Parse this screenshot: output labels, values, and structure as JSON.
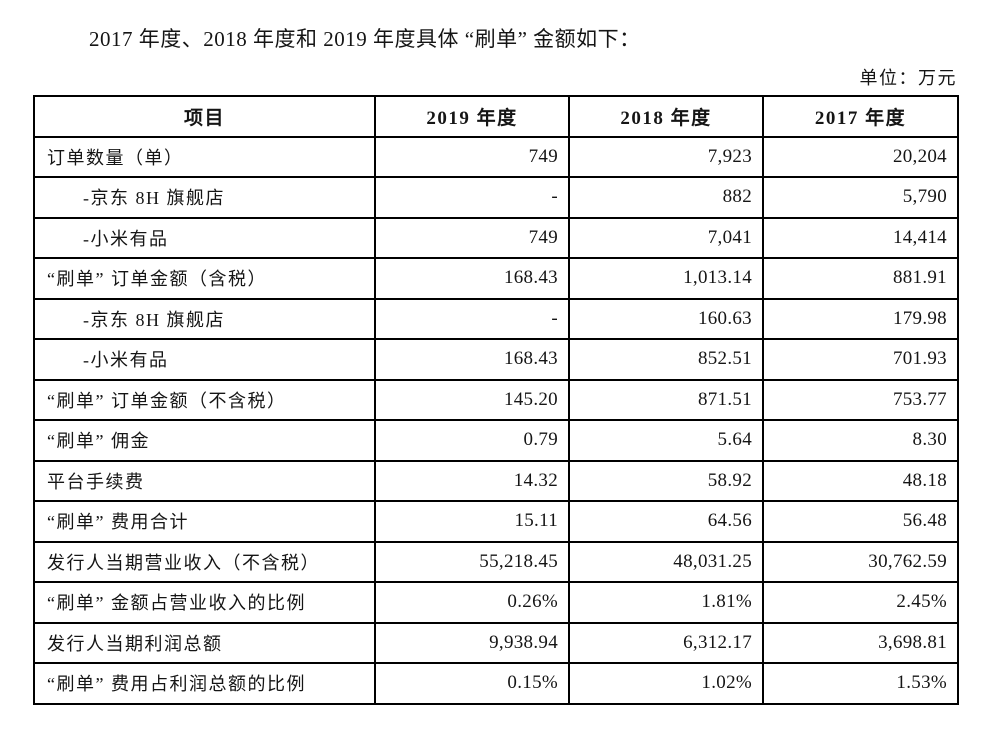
{
  "page": {
    "title": "2017 年度、2018 年度和 2019 年度具体 “刷单” 金额如下：",
    "unit_label": "单位：万元"
  },
  "table": {
    "columns": [
      "项目",
      "2019 年度",
      "2018 年度",
      "2017 年度"
    ],
    "rows": [
      {
        "label": "订单数量（单）",
        "indent": false,
        "values": [
          "749",
          "7,923",
          "20,204"
        ]
      },
      {
        "label": "-京东 8H 旗舰店",
        "indent": true,
        "values": [
          "-",
          "882",
          "5,790"
        ]
      },
      {
        "label": "-小米有品",
        "indent": true,
        "values": [
          "749",
          "7,041",
          "14,414"
        ]
      },
      {
        "label": "“刷单” 订单金额（含税）",
        "indent": false,
        "values": [
          "168.43",
          "1,013.14",
          "881.91"
        ]
      },
      {
        "label": "-京东 8H 旗舰店",
        "indent": true,
        "values": [
          "-",
          "160.63",
          "179.98"
        ]
      },
      {
        "label": "-小米有品",
        "indent": true,
        "values": [
          "168.43",
          "852.51",
          "701.93"
        ]
      },
      {
        "label": "“刷单” 订单金额（不含税）",
        "indent": false,
        "values": [
          "145.20",
          "871.51",
          "753.77"
        ]
      },
      {
        "label": "“刷单” 佣金",
        "indent": false,
        "values": [
          "0.79",
          "5.64",
          "8.30"
        ]
      },
      {
        "label": "平台手续费",
        "indent": false,
        "values": [
          "14.32",
          "58.92",
          "48.18"
        ]
      },
      {
        "label": "“刷单” 费用合计",
        "indent": false,
        "values": [
          "15.11",
          "64.56",
          "56.48"
        ]
      },
      {
        "label": "发行人当期营业收入（不含税）",
        "indent": false,
        "values": [
          "55,218.45",
          "48,031.25",
          "30,762.59"
        ]
      },
      {
        "label": "“刷单” 金额占营业收入的比例",
        "indent": false,
        "values": [
          "0.26%",
          "1.81%",
          "2.45%"
        ]
      },
      {
        "label": "发行人当期利润总额",
        "indent": false,
        "values": [
          "9,938.94",
          "6,312.17",
          "3,698.81"
        ]
      },
      {
        "label": "“刷单” 费用占利润总额的比例",
        "indent": false,
        "values": [
          "0.15%",
          "1.02%",
          "1.53%"
        ]
      }
    ]
  }
}
